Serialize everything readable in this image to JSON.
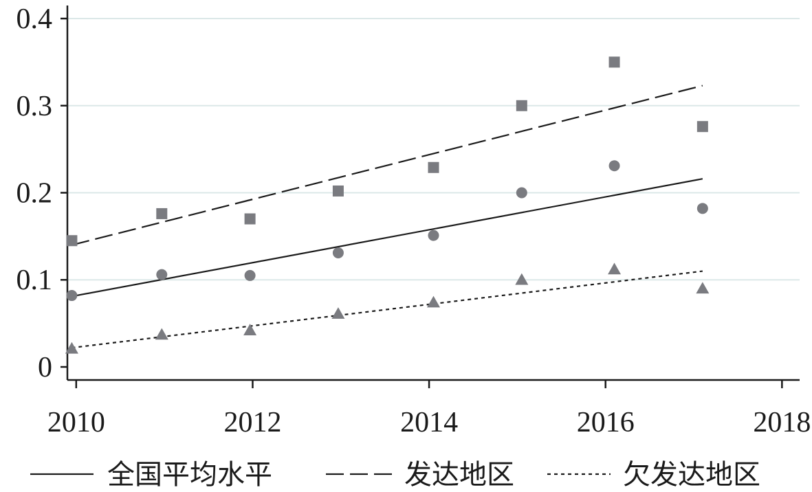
{
  "chart_data": {
    "type": "scatter",
    "title": "",
    "xlabel": "",
    "ylabel": "",
    "xlim": [
      2009.9,
      2018.2
    ],
    "ylim": [
      -0.015,
      0.415
    ],
    "x_ticks": [
      2010,
      2012,
      2014,
      2016,
      2018
    ],
    "x_tick_labels": [
      "2010",
      "2012",
      "2014",
      "2016",
      "2018"
    ],
    "y_ticks": [
      0,
      0.1,
      0.2,
      0.3,
      0.4
    ],
    "y_tick_labels": [
      "0",
      "0.1",
      "0.2",
      "0.3",
      "0.4"
    ],
    "grid": "horizontal",
    "legend_position": "bottom",
    "series": [
      {
        "name": "全国平均水平",
        "marker": "circle",
        "line_style": "solid",
        "color": "#7a7b80",
        "line_color": "#1a1a1a",
        "x": [
          2009.95,
          2010.97,
          2011.97,
          2012.97,
          2014.05,
          2015.05,
          2016.1,
          2017.1
        ],
        "y": [
          0.082,
          0.106,
          0.105,
          0.131,
          0.151,
          0.2,
          0.231,
          0.182
        ],
        "fit": {
          "x": [
            2009.95,
            2017.1
          ],
          "y": [
            0.081,
            0.216
          ]
        }
      },
      {
        "name": "发达地区",
        "marker": "square",
        "line_style": "dashed",
        "color": "#7a7b80",
        "line_color": "#1a1a1a",
        "x": [
          2009.95,
          2010.97,
          2011.97,
          2012.97,
          2014.05,
          2015.05,
          2016.1,
          2017.1
        ],
        "y": [
          0.145,
          0.176,
          0.17,
          0.202,
          0.229,
          0.3,
          0.35,
          0.276
        ],
        "fit": {
          "x": [
            2009.95,
            2017.1
          ],
          "y": [
            0.14,
            0.323
          ]
        }
      },
      {
        "name": "欠发达地区",
        "marker": "triangle",
        "line_style": "dotted",
        "color": "#7a7b80",
        "line_color": "#1a1a1a",
        "x": [
          2009.95,
          2010.97,
          2011.97,
          2012.97,
          2014.05,
          2015.05,
          2016.1,
          2017.1
        ],
        "y": [
          0.021,
          0.037,
          0.042,
          0.061,
          0.074,
          0.1,
          0.112,
          0.09
        ],
        "fit": {
          "x": [
            2009.95,
            2017.1
          ],
          "y": [
            0.022,
            0.11
          ]
        }
      }
    ]
  }
}
